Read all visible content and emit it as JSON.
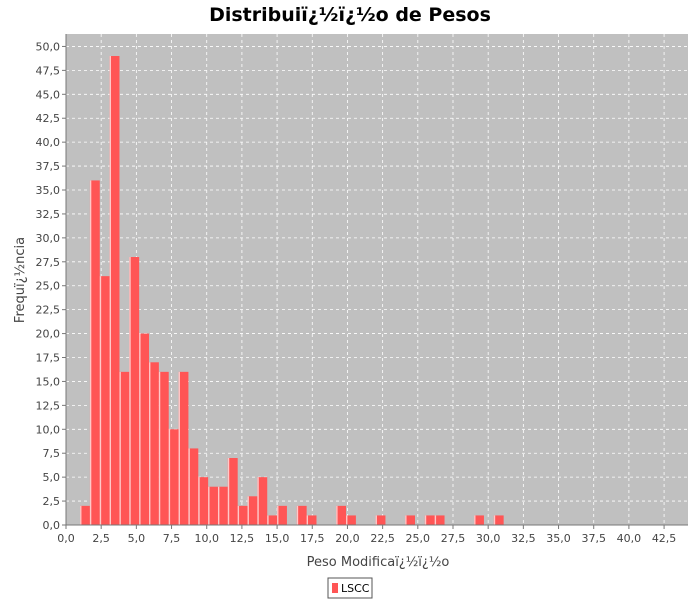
{
  "chart_data": {
    "type": "bar",
    "title": "Distribuiï¿½ï¿½o de Pesos",
    "xlabel": "Peso Modificaï¿½ï¿½o",
    "ylabel": "Frequï¿½ncia",
    "xlim": [
      0,
      44.2
    ],
    "ylim": [
      0,
      51.3
    ],
    "x_ticks": [
      "0,0",
      "2,5",
      "5,0",
      "7,5",
      "10,0",
      "12,5",
      "15,0",
      "17,5",
      "20,0",
      "22,5",
      "25,0",
      "27,5",
      "30,0",
      "32,5",
      "35,0",
      "37,5",
      "40,0",
      "42,5"
    ],
    "y_ticks": [
      "0,0",
      "2,5",
      "5,0",
      "7,5",
      "10,0",
      "12,5",
      "15,0",
      "17,5",
      "20,0",
      "22,5",
      "25,0",
      "27,5",
      "30,0",
      "32,5",
      "35,0",
      "37,5",
      "40,0",
      "42,5",
      "45,0",
      "47,5",
      "50,0"
    ],
    "bin_width": 0.7,
    "grid": true,
    "legend_position": "bottom-center",
    "series": [
      {
        "name": "LSCC",
        "color": "#ff5555",
        "bins": [
          {
            "x": 1.35,
            "y": 2
          },
          {
            "x": 2.05,
            "y": 36
          },
          {
            "x": 2.75,
            "y": 26
          },
          {
            "x": 3.45,
            "y": 49
          },
          {
            "x": 4.15,
            "y": 16
          },
          {
            "x": 4.85,
            "y": 28
          },
          {
            "x": 5.55,
            "y": 20
          },
          {
            "x": 6.25,
            "y": 17
          },
          {
            "x": 6.95,
            "y": 16
          },
          {
            "x": 7.65,
            "y": 10
          },
          {
            "x": 8.35,
            "y": 16
          },
          {
            "x": 9.05,
            "y": 8
          },
          {
            "x": 9.75,
            "y": 5
          },
          {
            "x": 10.45,
            "y": 4
          },
          {
            "x": 11.15,
            "y": 4
          },
          {
            "x": 11.85,
            "y": 7
          },
          {
            "x": 12.55,
            "y": 2
          },
          {
            "x": 13.25,
            "y": 3
          },
          {
            "x": 13.95,
            "y": 5
          },
          {
            "x": 14.65,
            "y": 1
          },
          {
            "x": 15.35,
            "y": 2
          },
          {
            "x": 16.75,
            "y": 2
          },
          {
            "x": 17.45,
            "y": 1
          },
          {
            "x": 19.55,
            "y": 2
          },
          {
            "x": 20.25,
            "y": 1
          },
          {
            "x": 22.35,
            "y": 1
          },
          {
            "x": 24.45,
            "y": 1
          },
          {
            "x": 25.85,
            "y": 1
          },
          {
            "x": 26.55,
            "y": 1
          },
          {
            "x": 29.35,
            "y": 1
          },
          {
            "x": 30.75,
            "y": 1
          }
        ]
      }
    ]
  }
}
